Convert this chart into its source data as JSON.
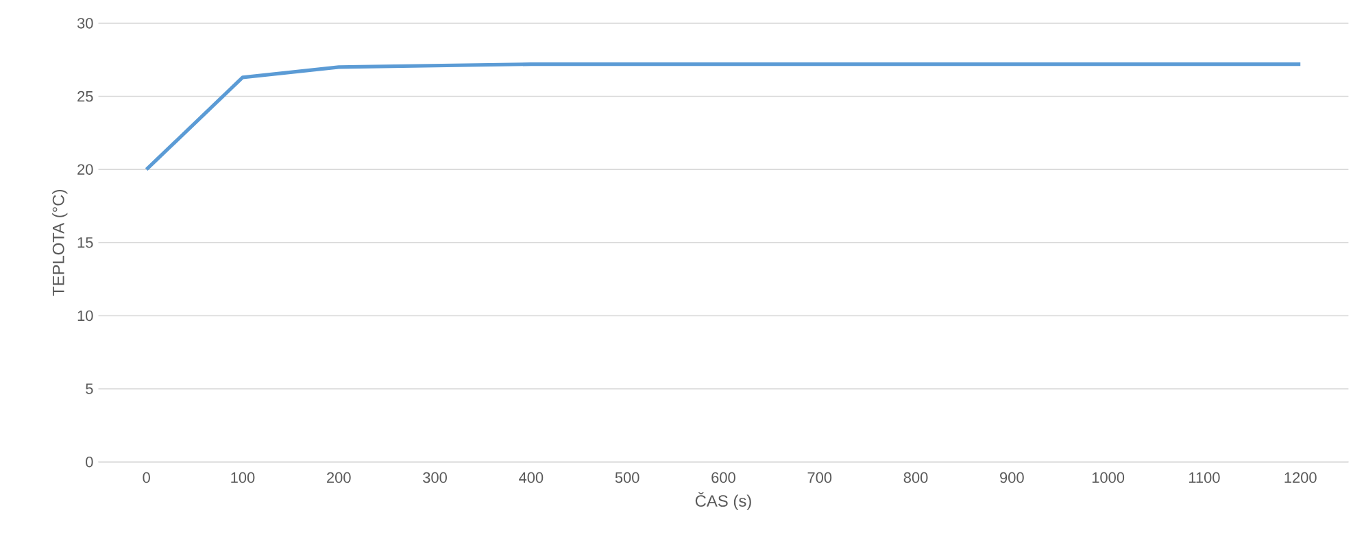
{
  "chart_data": {
    "type": "line",
    "xlabel": "ČAS (s)",
    "ylabel": "TEPLOTA (°C)",
    "categories": [
      "0",
      "100",
      "200",
      "300",
      "400",
      "500",
      "600",
      "700",
      "800",
      "900",
      "1000",
      "1100",
      "1200"
    ],
    "values": [
      20,
      26.3,
      27,
      27.1,
      27.2,
      27.2,
      27.2,
      27.2,
      27.2,
      27.2,
      27.2,
      27.2,
      27.2
    ],
    "color": "#5b9bd5",
    "ylim": [
      0,
      30
    ],
    "yticks": [
      0,
      5,
      10,
      15,
      20,
      25,
      30
    ],
    "grid": "y"
  }
}
